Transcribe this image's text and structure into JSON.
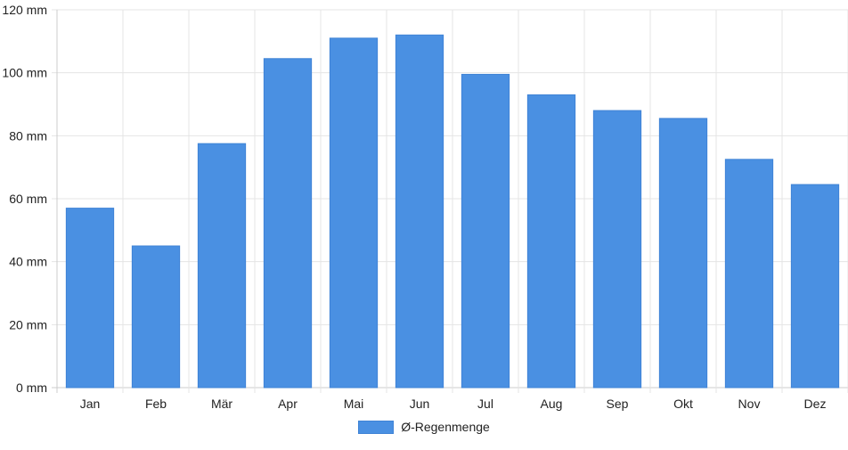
{
  "chart_data": {
    "type": "bar",
    "categories": [
      "Jan",
      "Feb",
      "Mär",
      "Apr",
      "Mai",
      "Jun",
      "Jul",
      "Aug",
      "Sep",
      "Okt",
      "Nov",
      "Dez"
    ],
    "series": [
      {
        "name": "Ø-Regenmenge",
        "values": [
          57,
          45,
          77.5,
          104.5,
          111,
          112,
          99.5,
          93,
          88,
          85.5,
          72.5,
          64.5
        ]
      }
    ],
    "ylim": [
      0,
      120
    ],
    "yticks": [
      "0 mm",
      "20 mm",
      "40 mm",
      "60 mm",
      "80 mm",
      "100 mm",
      "120 mm"
    ],
    "unit": "mm",
    "grid": true,
    "legend_position": "bottom-center",
    "colors": {
      "bar": "#4a90e2",
      "bar_border": "#3f83d6",
      "grid": "#e5e5e5",
      "axis": "#cccccc"
    }
  }
}
